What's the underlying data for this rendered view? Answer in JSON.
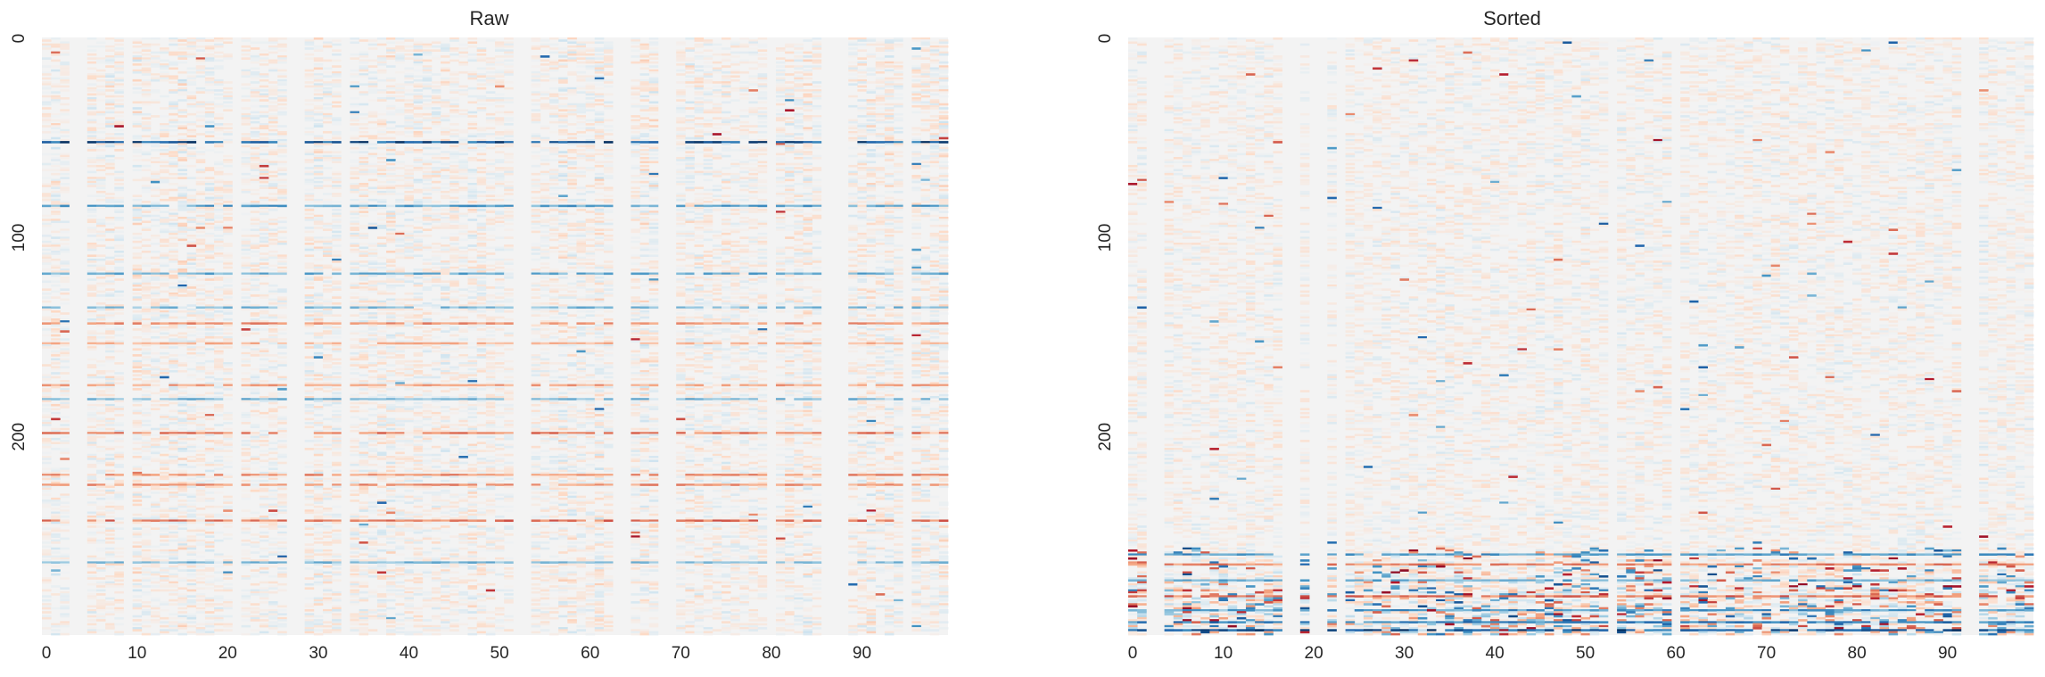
{
  "chart_data": [
    {
      "type": "heatmap",
      "title": "Raw",
      "n_cols": 100,
      "n_rows": 300,
      "x_ticks": [
        0,
        10,
        20,
        30,
        40,
        50,
        60,
        70,
        80,
        90
      ],
      "y_ticks": [
        0,
        100,
        200
      ],
      "colormap": "RdBu_r",
      "colormap_colors": [
        "#053061",
        "#2166ac",
        "#4393c3",
        "#92c5de",
        "#d1e5f0",
        "#f3f3f3",
        "#fddbc7",
        "#f4a582",
        "#d6604d",
        "#b2182b",
        "#67001f"
      ],
      "blank_columns": [
        3,
        4,
        9,
        21,
        27,
        28,
        33,
        52,
        53,
        63,
        64,
        68,
        69,
        80,
        86,
        87,
        88,
        95
      ],
      "strong_rows": [
        {
          "row": 52,
          "value": -0.85
        },
        {
          "row": 84,
          "value": -0.55
        },
        {
          "row": 118,
          "value": -0.5
        },
        {
          "row": 135,
          "value": -0.45
        },
        {
          "row": 143,
          "value": 0.45
        },
        {
          "row": 153,
          "value": 0.35
        },
        {
          "row": 174,
          "value": 0.4
        },
        {
          "row": 181,
          "value": -0.45
        },
        {
          "row": 198,
          "value": 0.5
        },
        {
          "row": 219,
          "value": 0.45
        },
        {
          "row": 224,
          "value": 0.45
        },
        {
          "row": 242,
          "value": 0.55
        },
        {
          "row": 263,
          "value": -0.45
        }
      ],
      "sorted": false
    },
    {
      "type": "heatmap",
      "title": "Sorted",
      "n_cols": 100,
      "n_rows": 300,
      "x_ticks": [
        0,
        10,
        20,
        30,
        40,
        50,
        60,
        70,
        80,
        90
      ],
      "y_ticks": [
        0,
        100,
        200
      ],
      "colormap": "RdBu_r",
      "colormap_colors": [
        "#053061",
        "#2166ac",
        "#4393c3",
        "#92c5de",
        "#d1e5f0",
        "#f3f3f3",
        "#fddbc7",
        "#f4a582",
        "#d6604d",
        "#b2182b",
        "#67001f"
      ],
      "blank_columns": [
        2,
        3,
        17,
        18,
        20,
        21,
        23,
        53,
        60,
        92,
        93
      ],
      "strong_rows": [
        {
          "row": 259,
          "value": -0.6
        },
        {
          "row": 264,
          "value": 0.5
        },
        {
          "row": 272,
          "value": -0.5
        },
        {
          "row": 280,
          "value": 0.55
        },
        {
          "row": 287,
          "value": -0.6
        },
        {
          "row": 293,
          "value": -0.7
        },
        {
          "row": 297,
          "value": -0.85
        }
      ],
      "sorted": true
    }
  ]
}
